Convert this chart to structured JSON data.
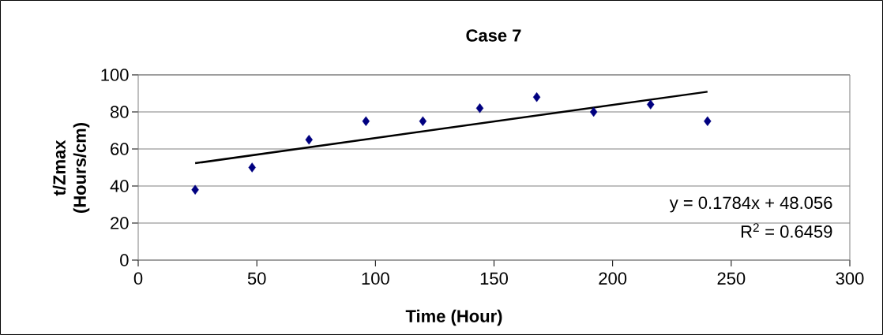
{
  "chart_data": {
    "type": "scatter",
    "title": "Case 7",
    "xlabel": "Time (Hour)",
    "ylabel": "t/Zmax (Hours/cm)",
    "x": [
      24,
      48,
      72,
      96,
      120,
      144,
      168,
      192,
      216,
      240
    ],
    "series": [
      {
        "color": "#000080",
        "marker": "diamond",
        "values": [
          38,
          50,
          65,
          75,
          75,
          82,
          88,
          80,
          84,
          75
        ]
      },
      {
        "type": "line",
        "color": "#000000",
        "marker": "none",
        "x": [
          24,
          240
        ],
        "values": [
          52.3,
          90.9
        ]
      }
    ],
    "annotations": [
      "y = 0.1784x + 48.056",
      "R$^{2}$ = 0.6459"
    ],
    "xlim": [
      0,
      300
    ],
    "ylim": [
      0,
      100
    ],
    "xticks": [
      0,
      50,
      100,
      150,
      200,
      250,
      300
    ],
    "yticks": [
      0,
      20,
      40,
      60,
      80,
      100
    ],
    "grid": "y"
  }
}
